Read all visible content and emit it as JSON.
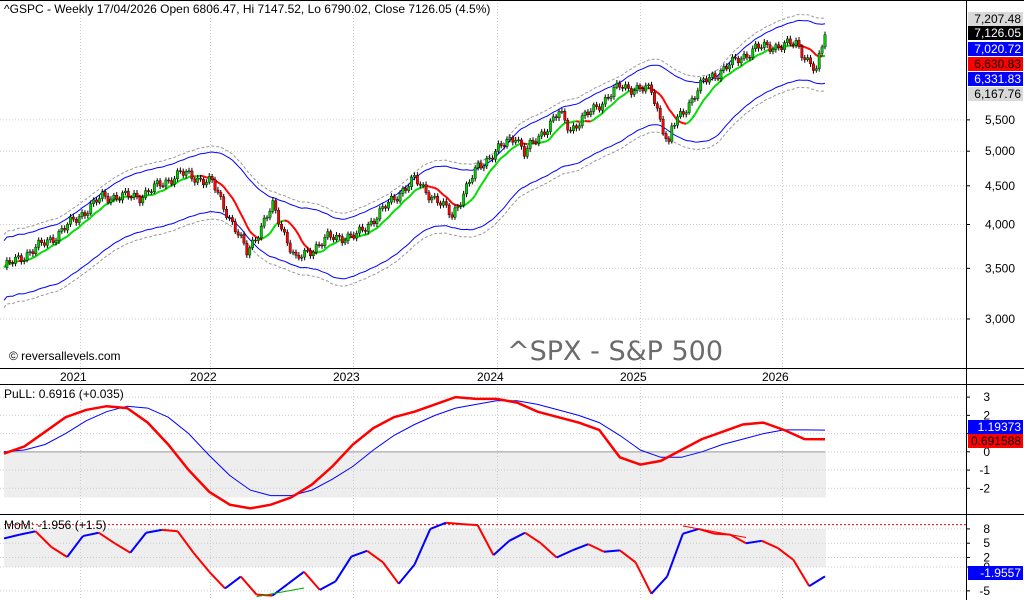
{
  "chart_data": [
    {
      "type": "candlestick",
      "title": "^GSPC - Weekly 17/04/2026 Open 6806.47, Hi 7147.52, Lo 6790.02, Close 7126.05 (4.5%)",
      "watermark": "^SPX - S&P 500",
      "copyright": "© reversallevels.com",
      "scale": "log",
      "ylim": [
        2600,
        7500
      ],
      "y_ticks": [
        {
          "label": "3,000",
          "value": 3000
        },
        {
          "label": "3,500",
          "value": 3500
        },
        {
          "label": "4,000",
          "value": 4000
        },
        {
          "label": "4,500",
          "value": 4500
        },
        {
          "label": "5,000",
          "value": 5000
        },
        {
          "label": "5,500",
          "value": 5500
        }
      ],
      "price_badges": [
        {
          "label": "7,207.48",
          "value": 7207.48,
          "bg": "#d9d9d9",
          "fg": "#000000"
        },
        {
          "label": "7,126.05",
          "value": 7126.05,
          "bg": "#000000",
          "fg": "#ffffff"
        },
        {
          "label": "7,020.72",
          "value": 7020.72,
          "bg": "#0000ff",
          "fg": "#ffffff"
        },
        {
          "label": "6,630.83",
          "value": 6630.83,
          "bg": "#ff0000",
          "fg": "#000000"
        },
        {
          "label": "6,331.83",
          "value": 6331.83,
          "bg": "#0000ff",
          "fg": "#ffffff"
        },
        {
          "label": "6,167.76",
          "value": 6167.76,
          "bg": "#d9d9d9",
          "fg": "#000000"
        }
      ],
      "x_labels": [
        "2021",
        "2022",
        "2023",
        "2024",
        "2025",
        "2026"
      ],
      "series_anchors": {
        "date": [
          "2020-11-06",
          "2021-03-05",
          "2021-07-02",
          "2021-10-01",
          "2022-01-07",
          "2022-03-25",
          "2022-06-17",
          "2022-08-19",
          "2022-10-14",
          "2022-12-30",
          "2023-03-10",
          "2023-06-30",
          "2023-07-28",
          "2023-10-27",
          "2023-12-29",
          "2024-03-29",
          "2024-04-19",
          "2024-07-12",
          "2024-08-09",
          "2024-12-06",
          "2025-02-21",
          "2025-04-04",
          "2025-04-11",
          "2025-06-27",
          "2025-10-31",
          "2026-02-06",
          "2026-03-27",
          "2026-04-17"
        ],
        "close": [
          3509,
          3842,
          4352,
          4357,
          4677,
          4543,
          3675,
          4228,
          3583,
          3840,
          3862,
          4450,
          4582,
          4117,
          4770,
          5254,
          4967,
          5615,
          5344,
          6090,
          6013,
          5074,
          5363,
          6173,
          6840,
          6935,
          6368,
          7126
        ]
      },
      "colors": {
        "up": "#00cc00",
        "down": "#ff0000",
        "band": "#0000ff",
        "ma": "#00dd00",
        "envelope": "#999999"
      }
    },
    {
      "type": "line",
      "title": "PuLL: 0.6916 (+0.035)",
      "ylim": [
        -3.3,
        3.5
      ],
      "y_ticks": [
        {
          "label": "3",
          "value": 3
        },
        {
          "label": "2",
          "value": 2
        },
        {
          "label": "1",
          "value": 1
        },
        {
          "label": "0",
          "value": 0
        },
        {
          "label": "-1",
          "value": -1
        },
        {
          "label": "-2",
          "value": -2
        }
      ],
      "series": [
        {
          "values": [
            -0.1,
            0.3,
            1.1,
            1.9,
            2.3,
            2.5,
            2.4,
            1.6,
            0.4,
            -1.0,
            -2.2,
            -2.9,
            -3.1,
            -2.9,
            -2.5,
            -1.8,
            -0.8,
            0.4,
            1.3,
            1.9,
            2.2,
            2.6,
            3.0,
            2.9,
            2.9,
            2.7,
            2.2,
            1.9,
            1.6,
            1.2,
            -0.3,
            -0.7,
            -0.5,
            0.1,
            0.7,
            1.1,
            1.5,
            1.6,
            1.2,
            0.7,
            0.69
          ]
        },
        {
          "values": [
            0,
            0.1,
            0.4,
            1.0,
            1.7,
            2.2,
            2.5,
            2.4,
            1.9,
            1.0,
            -0.2,
            -1.3,
            -2.1,
            -2.4,
            -2.4,
            -2.1,
            -1.5,
            -0.8,
            0.1,
            0.9,
            1.5,
            2.0,
            2.4,
            2.6,
            2.8,
            2.8,
            2.6,
            2.3,
            2.0,
            1.6,
            0.9,
            0.1,
            -0.3,
            -0.3,
            0.0,
            0.4,
            0.7,
            1.0,
            1.2,
            1.2,
            1.19
          ]
        }
      ],
      "badges": [
        {
          "label": "1.19373",
          "value": 1.19373,
          "bg": "#0000ff",
          "fg": "#ffffff"
        },
        {
          "label": "0.691588",
          "value": 0.691588,
          "bg": "#ff0000",
          "fg": "#000000"
        }
      ],
      "colors": {
        "line1": "#ff0000",
        "line2": "#0000ff"
      }
    },
    {
      "type": "line",
      "title": "MoM: -1.956 (+1.5)",
      "ylim": [
        -6.5,
        10.5
      ],
      "y_ticks": [
        {
          "label": "8",
          "value": 8
        },
        {
          "label": "5",
          "value": 5
        },
        {
          "label": "2",
          "value": 2
        },
        {
          "label": "0",
          "value": 0
        },
        {
          "label": "-5",
          "value": -5
        }
      ],
      "reference_line": 8.9,
      "series": [
        {
          "values": [
            6,
            6.8,
            7.5,
            4.2,
            2.1,
            6.5,
            7.2,
            5.0,
            3.0,
            7.2,
            7.8,
            7.5,
            3.0,
            -1.0,
            -4.5,
            -2.0,
            -5.8,
            -6.0,
            -3.5,
            -1.0,
            -4.8,
            -3.0,
            2.2,
            3.4,
            1.0,
            -3.5,
            0.5,
            8.0,
            9.3,
            9.0,
            8.8,
            2.5,
            5.5,
            7.2,
            5.0,
            2.0,
            3.5,
            4.8,
            3.2,
            3.5,
            1.0,
            -5.6,
            -2.0,
            7.0,
            8.0,
            7.0,
            6.8,
            5.0,
            5.5,
            4.0,
            1.5,
            -4.0,
            -1.956
          ]
        }
      ],
      "badges": [
        {
          "label": "-1.9557",
          "value": -1.9557,
          "bg": "#0000ff",
          "fg": "#ffffff"
        }
      ],
      "colors": {
        "up": "#0000ff",
        "down": "#ff0000",
        "divergence": "#00aa00",
        "ref": "#ff0000"
      }
    }
  ]
}
